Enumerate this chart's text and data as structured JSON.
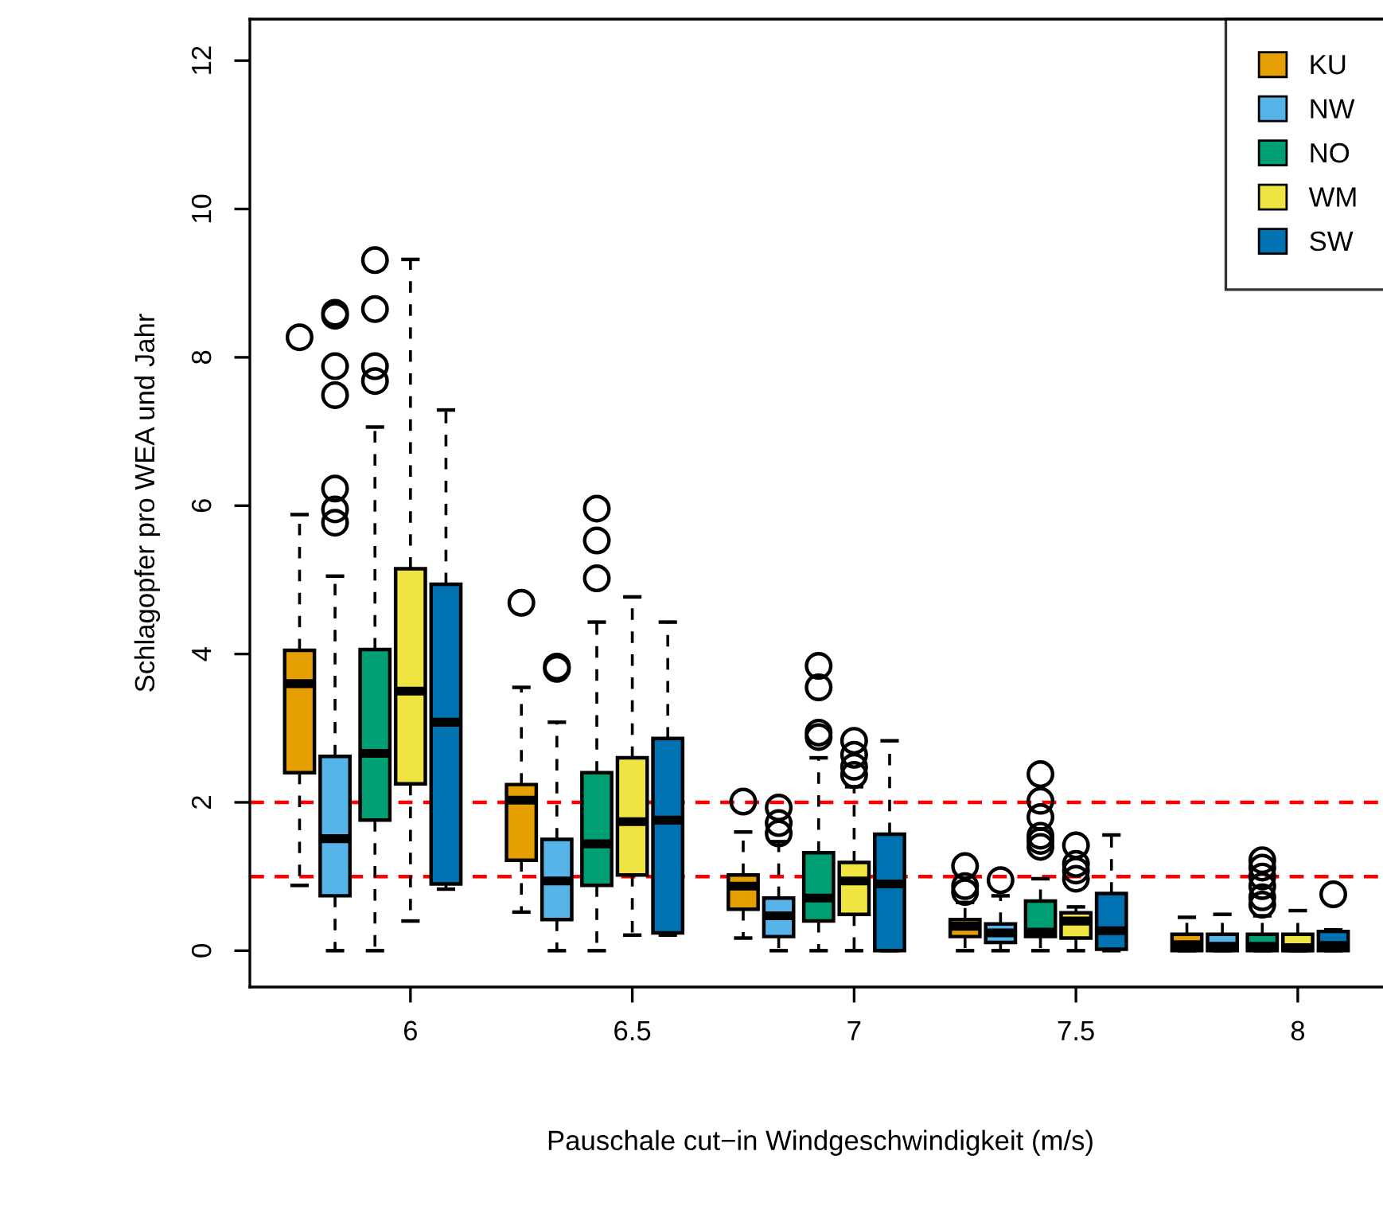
{
  "chart_data": {
    "type": "box",
    "xlabel": "Pauschale cut−in Windgeschwindigkeit (m/s)",
    "ylabel": "Schlagopfer pro WEA und Jahr",
    "xlim": [
      5.638,
      8.21
    ],
    "xticks": [
      6,
      6.5,
      7,
      7.5,
      8
    ],
    "ylim": [
      -0.49,
      12.56
    ],
    "yticks": [
      0,
      2,
      4,
      6,
      8,
      10,
      12
    ],
    "grid": false,
    "legend": "top right",
    "ref_lines": [
      {
        "axis": "y",
        "value": 2,
        "color": "#ff0000",
        "line_style": "dashed"
      },
      {
        "axis": "y",
        "value": 1,
        "color": "#ff0000",
        "line_style": "dashed"
      }
    ],
    "series": [
      {
        "name": "KU",
        "color": "#e69f00",
        "x": [
          5.75,
          6.25,
          6.75,
          7.25,
          7.75
        ],
        "boxes": [
          {
            "low": 0.88,
            "q1": 2.4,
            "median": 3.6,
            "q3": 4.05,
            "high": 5.88,
            "outliers": [
              8.27
            ]
          },
          {
            "low": 0.52,
            "q1": 1.22,
            "median": 2.03,
            "q3": 2.24,
            "high": 3.55,
            "outliers": [
              4.69
            ]
          },
          {
            "low": 0.17,
            "q1": 0.56,
            "median": 0.87,
            "q3": 1.02,
            "high": 1.6,
            "outliers": [
              2.01
            ]
          },
          {
            "low": 0,
            "q1": 0.19,
            "median": 0.33,
            "q3": 0.42,
            "high": 0.65,
            "outliers": [
              0.79,
              0.87,
              1.14
            ]
          },
          {
            "low": 0,
            "q1": 0,
            "median": 0.08,
            "q3": 0.22,
            "high": 0.45
          }
        ]
      },
      {
        "name": "NW",
        "color": "#56b4e9",
        "x": [
          5.83,
          6.33,
          6.83,
          7.33,
          7.83
        ],
        "boxes": [
          {
            "low": 0,
            "q1": 0.74,
            "median": 1.51,
            "q3": 2.62,
            "high": 5.05,
            "outliers": [
              5.77,
              5.95,
              6.23,
              7.49,
              7.88,
              8.56,
              8.6
            ]
          },
          {
            "low": 0,
            "q1": 0.42,
            "median": 0.94,
            "q3": 1.5,
            "high": 3.08,
            "outliers": [
              3.8,
              3.83
            ]
          },
          {
            "low": 0,
            "q1": 0.19,
            "median": 0.47,
            "q3": 0.71,
            "high": 1.47,
            "outliers": [
              1.58,
              1.72,
              1.93
            ]
          },
          {
            "low": 0,
            "q1": 0.11,
            "median": 0.24,
            "q3": 0.36,
            "high": 0.74,
            "outliers": [
              0.95
            ]
          },
          {
            "low": 0,
            "q1": 0,
            "median": 0.06,
            "q3": 0.22,
            "high": 0.49
          }
        ]
      },
      {
        "name": "NO",
        "color": "#009e73",
        "x": [
          5.92,
          6.42,
          6.92,
          7.42,
          7.92
        ],
        "boxes": [
          {
            "low": 0,
            "q1": 1.76,
            "median": 2.66,
            "q3": 4.06,
            "high": 7.06,
            "outliers": [
              7.68,
              7.88,
              8.65,
              9.31
            ]
          },
          {
            "low": 0,
            "q1": 0.88,
            "median": 1.44,
            "q3": 2.4,
            "high": 4.43,
            "outliers": [
              5.02,
              5.53,
              5.96
            ]
          },
          {
            "low": 0,
            "q1": 0.4,
            "median": 0.71,
            "q3": 1.32,
            "high": 2.6,
            "outliers": [
              2.88,
              2.94,
              3.55,
              3.84
            ]
          },
          {
            "low": 0,
            "q1": 0.19,
            "median": 0.25,
            "q3": 0.67,
            "high": 0.97,
            "outliers": [
              1.4,
              1.48,
              1.55,
              1.8,
              2.02,
              2.38
            ]
          },
          {
            "low": 0,
            "q1": 0,
            "median": 0.06,
            "q3": 0.22,
            "high": 0.47,
            "outliers": [
              0.62,
              0.72,
              0.87,
              1.0,
              1.12,
              1.22
            ]
          }
        ]
      },
      {
        "name": "WM",
        "color": "#f0e442",
        "x": [
          6,
          6.5,
          7,
          7.5,
          8
        ],
        "boxes": [
          {
            "low": 0.4,
            "q1": 2.25,
            "median": 3.5,
            "q3": 5.15,
            "high": 9.32
          },
          {
            "low": 0.21,
            "q1": 1.02,
            "median": 1.74,
            "q3": 2.6,
            "high": 4.77
          },
          {
            "low": 0,
            "q1": 0.49,
            "median": 0.94,
            "q3": 1.19,
            "high": 2.21,
            "outliers": [
              2.37,
              2.48,
              2.64,
              2.83
            ]
          },
          {
            "low": 0,
            "q1": 0.17,
            "median": 0.4,
            "q3": 0.51,
            "high": 0.59,
            "outliers": [
              0.97,
              1.08,
              1.17,
              1.42
            ]
          },
          {
            "low": 0,
            "q1": 0,
            "median": 0.04,
            "q3": 0.22,
            "high": 0.54
          }
        ]
      },
      {
        "name": "SW",
        "color": "#0072b2",
        "x": [
          6.08,
          6.58,
          7.08,
          7.58,
          8.08
        ],
        "boxes": [
          {
            "low": 0.83,
            "q1": 0.9,
            "median": 3.08,
            "q3": 4.94,
            "high": 7.29
          },
          {
            "low": 0.21,
            "q1": 0.24,
            "median": 1.76,
            "q3": 2.86,
            "high": 4.43
          },
          {
            "low": 0,
            "q1": 0,
            "median": 0.9,
            "q3": 1.57,
            "high": 2.83
          },
          {
            "low": 0,
            "q1": 0.02,
            "median": 0.27,
            "q3": 0.77,
            "high": 1.56
          },
          {
            "low": 0,
            "q1": 0,
            "median": 0.07,
            "q3": 0.26,
            "high": 0.28,
            "outliers": [
              0.76
            ]
          }
        ]
      }
    ]
  }
}
